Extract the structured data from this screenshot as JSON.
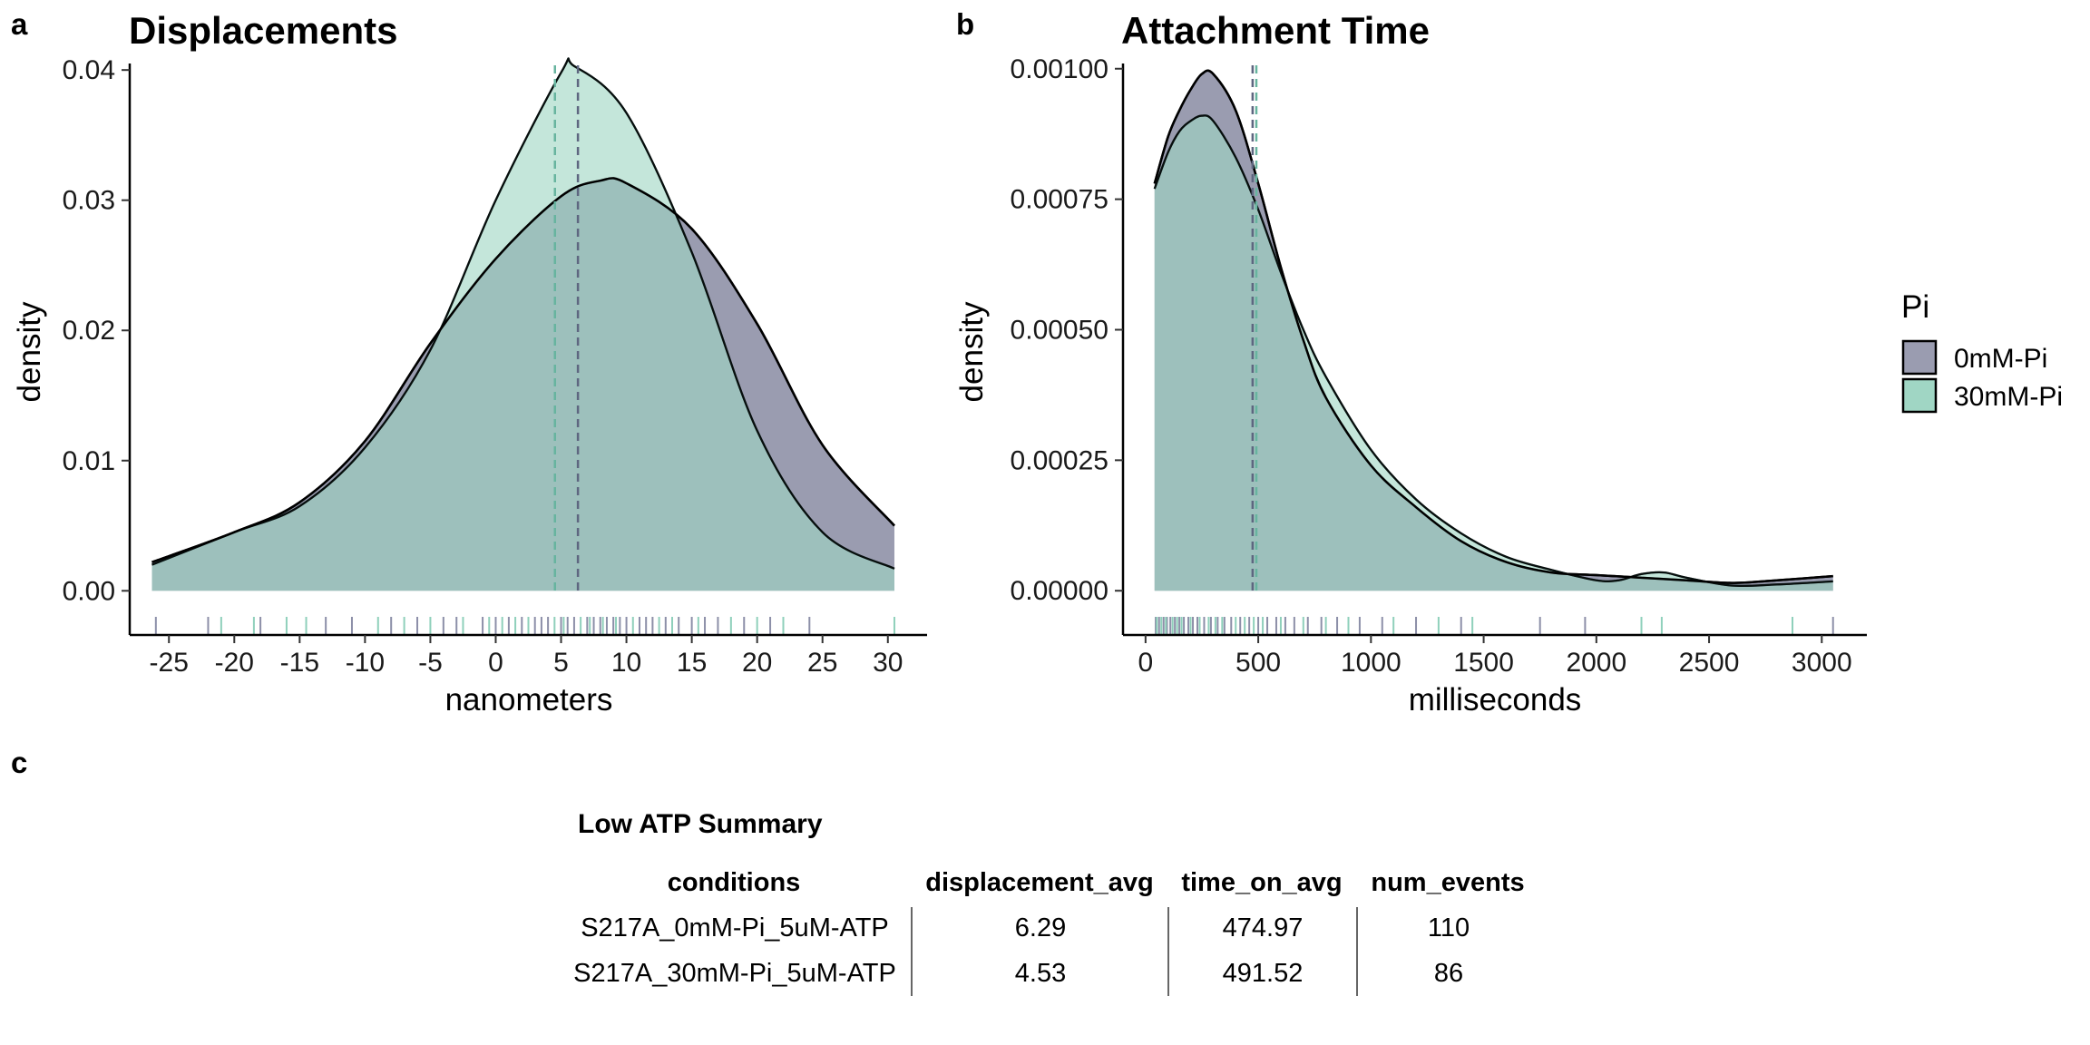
{
  "panels": {
    "a": "a",
    "b": "b",
    "c": "c"
  },
  "legend": {
    "title": "Pi",
    "items": [
      {
        "label": "0mM-Pi",
        "color": "#9a9cb0"
      },
      {
        "label": "30mM-Pi",
        "color": "#a0d6c4"
      }
    ]
  },
  "colors": {
    "overlap": "#7aaea6",
    "mean_0mM": "#5e6680",
    "mean_30mM": "#67b49f"
  },
  "chart_data": [
    {
      "type": "area",
      "title": "Displacements",
      "xlabel": "nanometers",
      "ylabel": "density",
      "xlim": [
        -28,
        33
      ],
      "ylim": [
        -0.002,
        0.0405
      ],
      "x_ticks": [
        -25,
        -20,
        -15,
        -10,
        -5,
        0,
        5,
        10,
        15,
        20,
        25,
        30
      ],
      "x_tick_labels": [
        "-25",
        "-20",
        "-15",
        "-10",
        "-5",
        "0",
        "5",
        "10",
        "15",
        "20",
        "25",
        "30"
      ],
      "y_ticks": [
        0,
        0.01,
        0.02,
        0.03,
        0.04
      ],
      "y_tick_labels": [
        "0.00",
        "0.01",
        "0.02",
        "0.03",
        "0.04"
      ],
      "grid": false,
      "series": [
        {
          "name": "0mM-Pi",
          "color": "#9a9cb0",
          "mean": 6.29,
          "x": [
            -26.3,
            -20,
            -15,
            -10,
            -5,
            0,
            5,
            8,
            10,
            15,
            20,
            25,
            30.5
          ],
          "y": [
            0.0022,
            0.0045,
            0.0068,
            0.0115,
            0.019,
            0.0255,
            0.0303,
            0.0315,
            0.0313,
            0.0278,
            0.0205,
            0.0112,
            0.005
          ]
        },
        {
          "name": "30mM-Pi",
          "color": "#a0d6c4",
          "mean": 4.53,
          "x": [
            -26.3,
            -20,
            -15,
            -10,
            -5,
            0,
            5,
            6,
            10,
            15,
            20,
            25,
            30.5
          ],
          "y": [
            0.002,
            0.0045,
            0.0065,
            0.011,
            0.0185,
            0.03,
            0.0398,
            0.0403,
            0.0367,
            0.026,
            0.0123,
            0.0045,
            0.0017
          ]
        }
      ],
      "rug": {
        "0mM-Pi": [
          -26,
          -22,
          -18,
          -13,
          -11,
          -8,
          -6,
          -4,
          -3,
          -1,
          0,
          1,
          2,
          3,
          3.5,
          4,
          5,
          5.5,
          6,
          7,
          7.5,
          8,
          8.5,
          9,
          9.5,
          10,
          11,
          11.5,
          12,
          13,
          14,
          15,
          16,
          17,
          19,
          21,
          24
        ],
        "30mM-Pi": [
          -21,
          -18.5,
          -16,
          -14.5,
          -9,
          -7,
          -5,
          -2.5,
          -0.5,
          0.5,
          1.5,
          2.5,
          4.5,
          5.2,
          6.5,
          7.2,
          8.2,
          9.2,
          10.5,
          12.5,
          13.5,
          15.5,
          18,
          20,
          22,
          30.5
        ]
      }
    },
    {
      "type": "area",
      "title": "Attachment Time",
      "xlabel": "milliseconds",
      "ylabel": "density",
      "xlim": [
        -100,
        3200
      ],
      "ylim": [
        -5e-05,
        0.00101
      ],
      "x_ticks": [
        0,
        500,
        1000,
        1500,
        2000,
        2500,
        3000
      ],
      "x_tick_labels": [
        "0",
        "500",
        "1000",
        "1500",
        "2000",
        "2500",
        "3000"
      ],
      "y_ticks": [
        0,
        0.00025,
        0.0005,
        0.00075,
        0.001
      ],
      "y_tick_labels": [
        "0.00000",
        "0.00025",
        "0.00050",
        "0.00075",
        "0.00100"
      ],
      "grid": false,
      "series": [
        {
          "name": "0mM-Pi",
          "color": "#9a9cb0",
          "mean": 474.97,
          "x": [
            40,
            100,
            150,
            200,
            250,
            300,
            400,
            500,
            600,
            700,
            800,
            1000,
            1200,
            1400,
            1600,
            1800,
            2000,
            2200,
            2400,
            2600,
            2800,
            3050
          ],
          "y": [
            0.00078,
            0.00087,
            0.00092,
            0.00096,
            0.00099,
            0.00099,
            0.00092,
            0.00078,
            0.00062,
            0.00048,
            0.00037,
            0.00024,
            0.00016,
            9.5e-05,
            5.5e-05,
            3.5e-05,
            3e-05,
            2.5e-05,
            2e-05,
            1.5e-05,
            2e-05,
            2.8e-05
          ]
        },
        {
          "name": "30mM-Pi",
          "color": "#a0d6c4",
          "mean": 491.52,
          "x": [
            40,
            100,
            150,
            200,
            250,
            300,
            400,
            500,
            600,
            700,
            800,
            1000,
            1200,
            1400,
            1600,
            1800,
            2000,
            2100,
            2200,
            2300,
            2400,
            2600,
            2800,
            3050
          ],
          "y": [
            0.00077,
            0.00084,
            0.00088,
            0.0009,
            0.00091,
            0.0009,
            0.00083,
            0.00073,
            0.00061,
            0.0005,
            0.00041,
            0.00027,
            0.000175,
            0.00011,
            6.5e-05,
            4e-05,
            2e-05,
            2e-05,
            3.2e-05,
            3.5e-05,
            2.5e-05,
            1e-05,
            1.2e-05,
            1.8e-05
          ]
        }
      ],
      "rug": {
        "0mM-Pi": [
          45,
          60,
          80,
          95,
          110,
          130,
          150,
          170,
          190,
          210,
          230,
          260,
          290,
          320,
          350,
          380,
          420,
          460,
          500,
          540,
          580,
          620,
          660,
          720,
          780,
          850,
          950,
          1050,
          1200,
          1400,
          1750,
          1950,
          3050
        ],
        "30mM-Pi": [
          50,
          70,
          90,
          120,
          140,
          160,
          200,
          240,
          280,
          310,
          340,
          400,
          440,
          480,
          520,
          600,
          700,
          800,
          900,
          1100,
          1300,
          1450,
          2200,
          2290,
          2870
        ]
      }
    },
    {
      "type": "table",
      "title": "Low ATP Summary",
      "columns": [
        "conditions",
        "displacement_avg",
        "time_on_avg",
        "num_events"
      ],
      "rows": [
        [
          "S217A_0mM-Pi_5uM-ATP",
          "6.29",
          "474.97",
          "110"
        ],
        [
          "S217A_30mM-Pi_5uM-ATP",
          "4.53",
          "491.52",
          "86"
        ]
      ]
    }
  ]
}
